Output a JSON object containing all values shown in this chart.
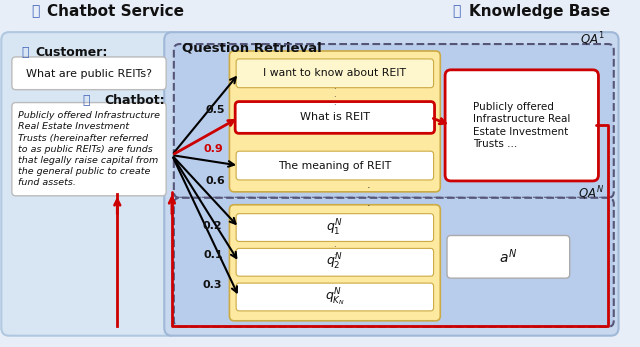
{
  "title_left": "Chatbot Service",
  "title_right": "Knowledge Base",
  "section_title": "Question Retrieval",
  "customer_label": "Customer:",
  "chatbot_label": "Chatbot:",
  "customer_text": "What are public REITs?",
  "chatbot_response": "Publicly offered Infrastructure\nReal Estate Investment\nTrusts (hereinafter referred\nto as public REITs) are funds\nthat legally raise capital from\nthe general public to create\nfund assets.",
  "qa1_answer": "Publicly offered\nInfrastructure Real\nEstate Investment\nTrusts ...",
  "score_05": "0.5",
  "score_09": "0.9",
  "score_06": "0.6",
  "score_02": "0.2",
  "score_01": "0.1",
  "score_03": "0.3",
  "q1_text": "I want to know about REIT",
  "q2_text": "What is REIT",
  "q3_text": "The meaning of REIT",
  "qn1": "$q_1^N$",
  "qn2": "$q_2^N$",
  "qnk": "$q_{K_N}^N$",
  "an": "$a^N$",
  "qa1_label": "$QA^1$",
  "qan_label": "$QA^N$",
  "fig_bg": "#e8eef8",
  "left_panel_bg": "#d8e6f4",
  "left_panel_edge": "#b0c8e0",
  "right_panel_bg": "#c8d8ee",
  "right_panel_edge": "#a0b8d8",
  "qa1_box_bg": "#b8ccec",
  "qan_box_bg": "#b8ccec",
  "yellow_bg": "#fde9a0",
  "white_bg": "#ffffff",
  "red": "#cc0000",
  "black": "#111111",
  "blue_icon": "#4466bb",
  "dashed_edge": "#555577",
  "score_label_color": "#111111",
  "score09_color": "#cc0000"
}
